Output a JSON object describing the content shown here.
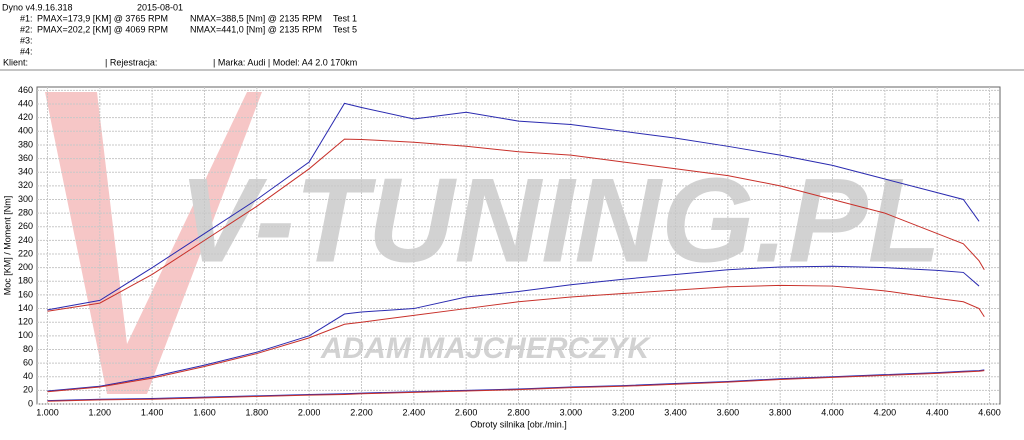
{
  "header": {
    "app": "Dyno v4.9.16.318",
    "date": "2015-08-01",
    "runs": [
      {
        "id": "#1:",
        "pmax": "PMAX=173,9 [KM] @ 3765 RPM",
        "nmax": "NMAX=388,5 [Nm] @ 2135 RPM",
        "test": "Test 1"
      },
      {
        "id": "#2:",
        "pmax": "PMAX=202,2 [KM] @ 4069 RPM",
        "nmax": "NMAX=441,0 [Nm] @ 2135 RPM",
        "test": "Test 5"
      },
      {
        "id": "#3:"
      },
      {
        "id": "#4:"
      }
    ],
    "client": "Klient:",
    "registration": "| Rejestracja:",
    "make": "| Marka: Audi | Model: A4 2.0 170km"
  },
  "watermark": {
    "brand": "V-TUNING.PL",
    "author": "ADAM MAJCHERCZYK"
  },
  "chart_data": {
    "type": "line",
    "ylabel": "Moc [KM] / Moment [Nm]",
    "xlabel": "Obroty silnika [obr./min.]",
    "x": [
      1000,
      1200,
      1400,
      1600,
      1800,
      2000,
      2135,
      2200,
      2400,
      2600,
      2800,
      3000,
      3200,
      3400,
      3600,
      3800,
      4000,
      4200,
      4400,
      4500,
      4560,
      4580
    ],
    "series": [
      {
        "color": "#2a2ab0",
        "values": [
          138,
          152,
          200,
          250,
          300,
          355,
          441,
          435,
          418,
          428,
          415,
          410,
          400,
          390,
          378,
          365,
          350,
          330,
          310,
          300,
          268,
          null
        ]
      },
      {
        "color": "#c8302a",
        "values": [
          136,
          148,
          190,
          240,
          290,
          345,
          388.5,
          388,
          384,
          378,
          370,
          365,
          355,
          345,
          335,
          320,
          300,
          280,
          250,
          235,
          210,
          197
        ]
      },
      {
        "color": "#2a2ab0",
        "values": [
          19,
          26,
          40,
          57,
          76,
          100,
          132,
          135,
          140,
          157,
          165,
          175,
          183,
          190,
          197,
          201,
          202,
          200,
          196,
          193,
          173,
          null
        ]
      },
      {
        "color": "#c8302a",
        "values": [
          18,
          25,
          38,
          55,
          74,
          97,
          117,
          120,
          130,
          140,
          150,
          157,
          162,
          167,
          172,
          174,
          173,
          166,
          155,
          150,
          140,
          128
        ]
      },
      {
        "color": "#2a2ab0",
        "values": [
          5,
          7,
          8,
          10,
          12,
          14,
          15,
          16,
          18,
          20,
          22,
          25,
          27,
          30,
          33,
          37,
          40,
          43,
          46,
          48,
          49,
          50
        ]
      },
      {
        "color": "#c8302a",
        "values": [
          4,
          6,
          7,
          9,
          11,
          13,
          14,
          15,
          17,
          19,
          21,
          24,
          26,
          29,
          32,
          36,
          39,
          42,
          45,
          47,
          48,
          49
        ]
      }
    ],
    "xlim": [
      960,
      4640
    ],
    "ylim": [
      0,
      465
    ],
    "xticks": [
      {
        "value": 1000,
        "label": "1.000"
      },
      {
        "value": 1200,
        "label": "1.200"
      },
      {
        "value": 1400,
        "label": "1.400"
      },
      {
        "value": 1600,
        "label": "1.600"
      },
      {
        "value": 1800,
        "label": "1.800"
      },
      {
        "value": 2000,
        "label": "2.000"
      },
      {
        "value": 2200,
        "label": "2.200"
      },
      {
        "value": 2400,
        "label": "2.400"
      },
      {
        "value": 2600,
        "label": "2.600"
      },
      {
        "value": 2800,
        "label": "2.800"
      },
      {
        "value": 3000,
        "label": "3.000"
      },
      {
        "value": 3200,
        "label": "3.200"
      },
      {
        "value": 3400,
        "label": "3.400"
      },
      {
        "value": 3600,
        "label": "3.600"
      },
      {
        "value": 3800,
        "label": "3.800"
      },
      {
        "value": 4000,
        "label": "4.000"
      },
      {
        "value": 4200,
        "label": "4.200"
      },
      {
        "value": 4400,
        "label": "4.400"
      },
      {
        "value": 4600,
        "label": "4.600"
      }
    ],
    "yticks": [
      0,
      20,
      40,
      60,
      80,
      100,
      120,
      140,
      160,
      180,
      200,
      220,
      240,
      260,
      280,
      300,
      320,
      340,
      360,
      380,
      400,
      420,
      440,
      460
    ],
    "grid": true
  }
}
